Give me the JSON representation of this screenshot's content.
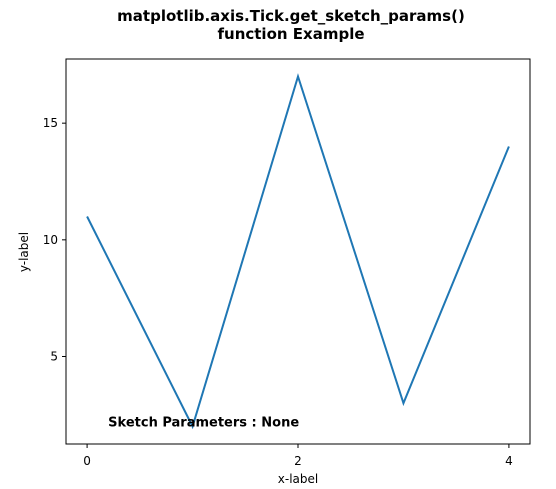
{
  "chart_data": {
    "type": "line",
    "title_lines": [
      "matplotlib.axis.Tick.get_sketch_params()",
      "function Example"
    ],
    "xlabel": "x-label",
    "ylabel": "y-label",
    "x": [
      0,
      1,
      2,
      3,
      4
    ],
    "series": [
      {
        "values": [
          11,
          2,
          17,
          3,
          14
        ],
        "color": "#1f77b4"
      }
    ],
    "xlim": [
      -0.2,
      4.2
    ],
    "ylim": [
      1.25,
      17.75
    ],
    "xticks": [
      0,
      2,
      4
    ],
    "yticks": [
      5,
      10,
      15
    ],
    "grid": false,
    "legend": "none",
    "annotation": {
      "text": "Sketch Parameters : None",
      "x": 0.2,
      "y": 2
    }
  }
}
